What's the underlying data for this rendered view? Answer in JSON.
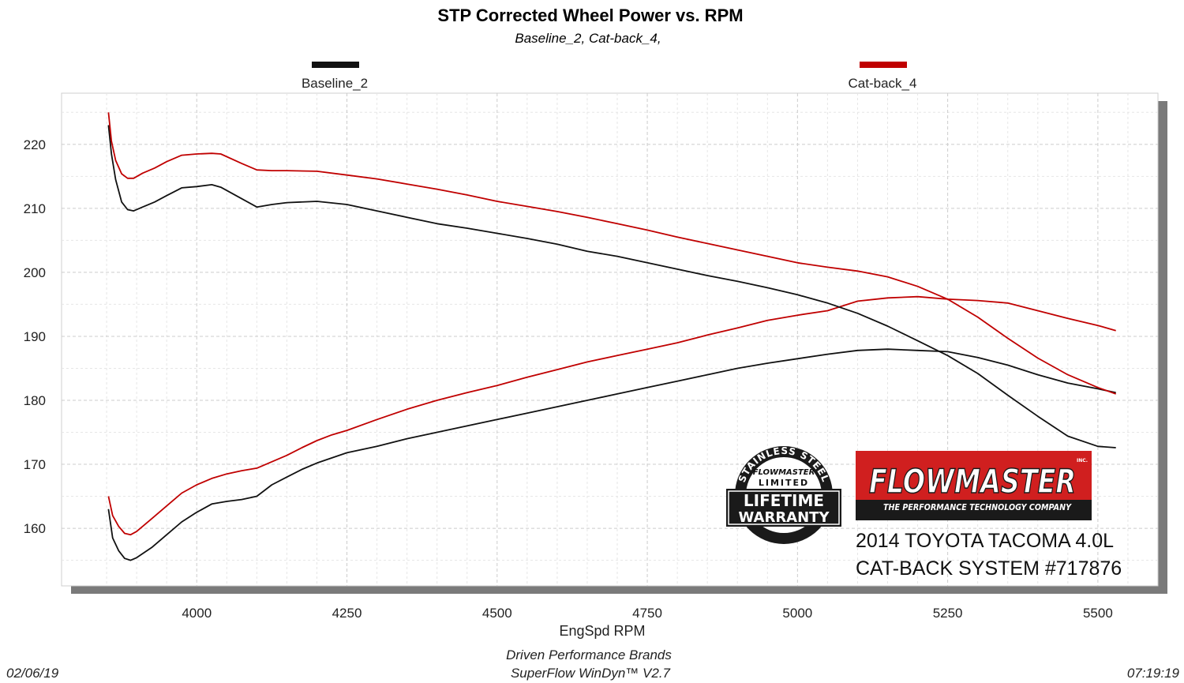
{
  "chart_data": {
    "type": "line",
    "title": "STP Corrected Wheel Power vs. RPM",
    "subtitle": "Baseline_2, Cat-back_4,",
    "xlabel": "EngSpd  RPM",
    "ylabel": "",
    "xlim": [
      3775,
      5600
    ],
    "ylim": [
      151,
      228
    ],
    "x_ticks": [
      4000,
      4250,
      4500,
      4750,
      5000,
      5250,
      5500
    ],
    "y_ticks": [
      160,
      170,
      180,
      190,
      200,
      210,
      220
    ],
    "grid": true,
    "legend_placement": "top",
    "series": [
      {
        "name": "Baseline_2",
        "measure": "power",
        "color": "#111111",
        "x": [
          3853,
          3860,
          3870,
          3880,
          3890,
          3900,
          3925,
          3950,
          3975,
          4000,
          4025,
          4050,
          4075,
          4100,
          4125,
          4150,
          4175,
          4200,
          4225,
          4250,
          4300,
          4350,
          4400,
          4450,
          4500,
          4550,
          4600,
          4650,
          4700,
          4750,
          4800,
          4850,
          4900,
          4950,
          5000,
          5050,
          5100,
          5150,
          5200,
          5250,
          5300,
          5350,
          5400,
          5450,
          5500,
          5530
        ],
        "y": [
          163,
          158.5,
          156.5,
          155.3,
          155,
          155.4,
          157,
          159,
          161,
          162.5,
          163.8,
          164.2,
          164.5,
          165,
          166.8,
          168,
          169.2,
          170.2,
          171,
          171.8,
          172.8,
          174,
          175,
          176,
          177,
          178,
          179,
          180,
          181,
          182,
          183,
          184,
          185,
          185.8,
          186.5,
          187.2,
          187.8,
          188,
          187.8,
          187.6,
          186.7,
          185.5,
          184,
          182.7,
          181.8,
          181.2
        ]
      },
      {
        "name": "Cat-back_4",
        "measure": "power",
        "color": "#c00000",
        "x": [
          3853,
          3860,
          3870,
          3880,
          3890,
          3900,
          3925,
          3950,
          3975,
          4000,
          4025,
          4050,
          4075,
          4100,
          4125,
          4150,
          4175,
          4200,
          4225,
          4250,
          4300,
          4350,
          4400,
          4450,
          4500,
          4550,
          4600,
          4650,
          4700,
          4750,
          4800,
          4850,
          4900,
          4950,
          5000,
          5050,
          5100,
          5150,
          5200,
          5250,
          5300,
          5350,
          5400,
          5450,
          5500,
          5530
        ],
        "y": [
          165,
          162,
          160.3,
          159.2,
          159,
          159.5,
          161.5,
          163.5,
          165.5,
          166.8,
          167.8,
          168.5,
          169,
          169.4,
          170.4,
          171.4,
          172.6,
          173.7,
          174.6,
          175.3,
          177,
          178.6,
          180,
          181.2,
          182.3,
          183.6,
          184.8,
          186,
          187,
          188,
          189,
          190.2,
          191.3,
          192.5,
          193.3,
          194,
          195.5,
          196,
          196.2,
          195.8,
          195.6,
          195.2,
          194,
          192.8,
          191.7,
          190.9
        ]
      },
      {
        "name": "Baseline_2",
        "measure": "torque",
        "color": "#111111",
        "x": [
          3853,
          3858,
          3865,
          3875,
          3885,
          3895,
          3910,
          3930,
          3950,
          3975,
          4000,
          4025,
          4040,
          4075,
          4100,
          4125,
          4150,
          4200,
          4250,
          4300,
          4350,
          4400,
          4450,
          4500,
          4550,
          4600,
          4650,
          4700,
          4750,
          4800,
          4850,
          4900,
          4950,
          5000,
          5050,
          5100,
          5150,
          5200,
          5250,
          5300,
          5350,
          5400,
          5450,
          5500,
          5530
        ],
        "y": [
          223,
          218.5,
          214.5,
          211,
          209.8,
          209.6,
          210.2,
          211,
          212,
          213.2,
          213.4,
          213.7,
          213.3,
          211.5,
          210.2,
          210.6,
          210.9,
          211.1,
          210.6,
          209.6,
          208.6,
          207.6,
          206.9,
          206.1,
          205.3,
          204.4,
          203.3,
          202.5,
          201.5,
          200.5,
          199.5,
          198.6,
          197.6,
          196.5,
          195.2,
          193.6,
          191.6,
          189.3,
          187,
          184.2,
          180.8,
          177.5,
          174.4,
          172.8,
          172.6
        ]
      },
      {
        "name": "Cat-back_4",
        "measure": "torque",
        "color": "#c00000",
        "x": [
          3853,
          3858,
          3865,
          3875,
          3885,
          3895,
          3910,
          3930,
          3950,
          3975,
          4000,
          4025,
          4040,
          4075,
          4100,
          4125,
          4150,
          4200,
          4250,
          4300,
          4350,
          4400,
          4450,
          4500,
          4550,
          4600,
          4650,
          4700,
          4750,
          4800,
          4850,
          4900,
          4950,
          5000,
          5050,
          5100,
          5150,
          5200,
          5250,
          5300,
          5350,
          5400,
          5450,
          5500,
          5530
        ],
        "y": [
          225,
          220.5,
          217.5,
          215.4,
          214.7,
          214.7,
          215.5,
          216.3,
          217.3,
          218.3,
          218.5,
          218.6,
          218.5,
          217,
          216,
          215.9,
          215.9,
          215.8,
          215.2,
          214.6,
          213.8,
          213,
          212.1,
          211.1,
          210.3,
          209.5,
          208.6,
          207.6,
          206.6,
          205.5,
          204.5,
          203.5,
          202.5,
          201.5,
          200.8,
          200.2,
          199.3,
          197.8,
          195.8,
          193,
          189.7,
          186.6,
          184,
          182,
          181
        ]
      }
    ]
  },
  "legend": {
    "items": [
      {
        "label": "Baseline_2",
        "color": "#111111"
      },
      {
        "label": "Cat-back_4",
        "color": "#c00000"
      }
    ]
  },
  "footer": {
    "date": "02/06/19",
    "time": "07:19:19",
    "company": "Driven Performance Brands",
    "software": "SuperFlow WinDyn™  V2.7"
  },
  "badge": {
    "ring_text": "STAINLESS STEEL",
    "brand": "FLOWMASTER",
    "limited": "LIMITED",
    "line1": "LIFETIME",
    "line2": "WARRANTY"
  },
  "logo": {
    "brand": "FLOWMASTER",
    "inc": "INC.",
    "tagline": "THE PERFORMANCE TECHNOLOGY COMPANY"
  },
  "caption": {
    "line1": "2014 TOYOTA TACOMA 4.0L",
    "line2": "CAT-BACK SYSTEM #717876"
  }
}
